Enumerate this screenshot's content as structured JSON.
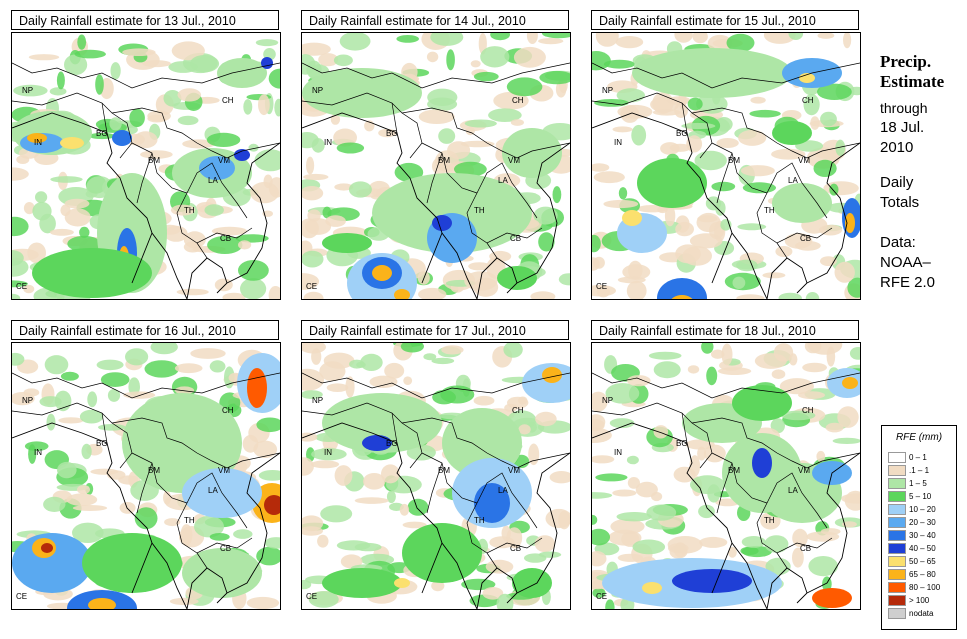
{
  "panels": [
    {
      "title": "Daily Rainfall estimate for  13 Jul., 2010",
      "day": 13
    },
    {
      "title": "Daily Rainfall estimate for  14 Jul., 2010",
      "day": 14
    },
    {
      "title": "Daily Rainfall estimate for  15 Jul., 2010",
      "day": 15
    },
    {
      "title": "Daily Rainfall estimate for  16 Jul., 2010",
      "day": 16
    },
    {
      "title": "Daily Rainfall estimate for  17 Jul., 2010",
      "day": 17
    },
    {
      "title": "Daily Rainfall estimate for  18 Jul., 2010",
      "day": 18
    }
  ],
  "country_labels": [
    "NP",
    "CH",
    "IN",
    "BG",
    "BM",
    "VM",
    "LA",
    "TH",
    "CB",
    "CE"
  ],
  "sidebar": {
    "title_line1": "Precip.",
    "title_line2": "Estimate",
    "through_label": "through",
    "date_line1": "18 Jul.",
    "date_line2": "2010",
    "totals_line1": "Daily",
    "totals_line2": "Totals",
    "data_line1": "Data:",
    "data_line2": "NOAA–",
    "data_line3": "RFE 2.0"
  },
  "legend": {
    "title": "RFE (mm)",
    "items": [
      {
        "label": "0 – 1",
        "color": "#ffffff"
      },
      {
        "label": ".1 – 1",
        "color": "#f1dcc3"
      },
      {
        "label": "1 – 5",
        "color": "#aee6a6"
      },
      {
        "label": "5 – 10",
        "color": "#5cd65c"
      },
      {
        "label": "10 – 20",
        "color": "#9fd0f7"
      },
      {
        "label": "20 – 30",
        "color": "#5aa9f0"
      },
      {
        "label": "30 – 40",
        "color": "#2a74e6"
      },
      {
        "label": "40 – 50",
        "color": "#1f3fd6"
      },
      {
        "label": "50 – 65",
        "color": "#fbe06e"
      },
      {
        "label": "65 – 80",
        "color": "#fbb31a"
      },
      {
        "label": "80 – 100",
        "color": "#ff5a00"
      },
      {
        "label": "> 100",
        "color": "#b52a0a"
      },
      {
        "label": "nodata",
        "color": "#cfcfcf"
      }
    ]
  }
}
